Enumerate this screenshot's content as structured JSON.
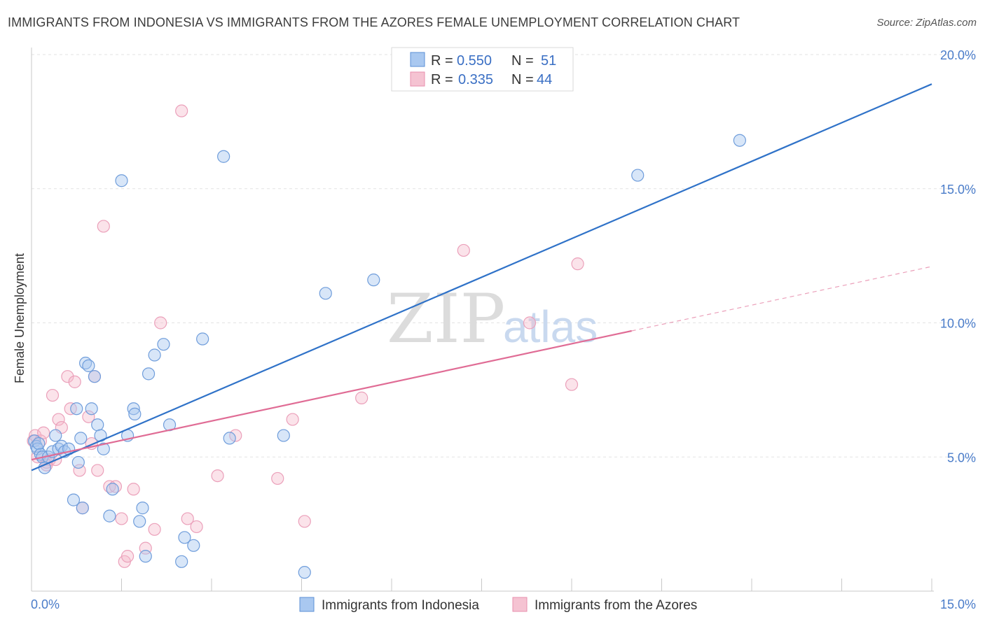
{
  "title": "IMMIGRANTS FROM INDONESIA VS IMMIGRANTS FROM THE AZORES FEMALE UNEMPLOYMENT CORRELATION CHART",
  "source": "Source: ZipAtlas.com",
  "watermark": {
    "zip": "ZIP",
    "atlas": "atlas"
  },
  "colors": {
    "blue": "#5b8fd6",
    "blue_fill": "#a9c8f0",
    "pink": "#e06c95",
    "pink_fill": "#f5b8cb",
    "axis_text": "#4a7cc9"
  },
  "legend": {
    "series": [
      {
        "r_label": "R =",
        "r_value": "0.550",
        "n_label": "N =",
        "n_value": "51"
      },
      {
        "r_label": "R =",
        "r_value": "0.335",
        "n_label": "N =",
        "n_value": "44"
      }
    ]
  },
  "bottom_legend": [
    "Immigrants from Indonesia",
    "Immigrants from the Azores"
  ],
  "chart_data": {
    "type": "scatter",
    "title": "IMMIGRANTS FROM INDONESIA VS IMMIGRANTS FROM THE AZORES FEMALE UNEMPLOYMENT CORRELATION CHART",
    "xlabel": "",
    "ylabel": "Female Unemployment",
    "xlim": [
      0,
      15
    ],
    "ylim": [
      0,
      20
    ],
    "x_tick_labels": [
      "0.0%",
      "15.0%"
    ],
    "y_ticks": [
      5,
      10,
      15,
      20
    ],
    "y_tick_labels": [
      "5.0%",
      "10.0%",
      "15.0%",
      "20.0%"
    ],
    "series": [
      {
        "name": "Immigrants from Indonesia",
        "color": "#5b8fd6",
        "r": 0.55,
        "n": 51,
        "trend": {
          "x": [
            0,
            15
          ],
          "y": [
            4.5,
            18.9
          ]
        },
        "points": [
          [
            0.05,
            5.6
          ],
          [
            0.08,
            5.4
          ],
          [
            0.1,
            5.3
          ],
          [
            0.12,
            5.5
          ],
          [
            0.15,
            5.1
          ],
          [
            0.18,
            5.0
          ],
          [
            0.22,
            4.6
          ],
          [
            0.28,
            5.0
          ],
          [
            0.35,
            5.2
          ],
          [
            0.4,
            5.8
          ],
          [
            0.45,
            5.3
          ],
          [
            0.5,
            5.4
          ],
          [
            0.55,
            5.2
          ],
          [
            0.62,
            5.3
          ],
          [
            0.7,
            3.4
          ],
          [
            0.75,
            6.8
          ],
          [
            0.78,
            4.8
          ],
          [
            0.82,
            5.7
          ],
          [
            0.85,
            3.1
          ],
          [
            0.9,
            8.5
          ],
          [
            0.95,
            8.4
          ],
          [
            1.0,
            6.8
          ],
          [
            1.05,
            8.0
          ],
          [
            1.1,
            6.2
          ],
          [
            1.15,
            5.8
          ],
          [
            1.2,
            5.3
          ],
          [
            1.3,
            2.8
          ],
          [
            1.35,
            3.8
          ],
          [
            1.5,
            15.3
          ],
          [
            1.6,
            5.8
          ],
          [
            1.7,
            6.8
          ],
          [
            1.72,
            6.6
          ],
          [
            1.8,
            2.6
          ],
          [
            1.85,
            3.1
          ],
          [
            1.9,
            1.3
          ],
          [
            1.95,
            8.1
          ],
          [
            2.05,
            8.8
          ],
          [
            2.2,
            9.2
          ],
          [
            2.3,
            6.2
          ],
          [
            2.5,
            1.1
          ],
          [
            2.55,
            2.0
          ],
          [
            2.7,
            1.7
          ],
          [
            2.85,
            9.4
          ],
          [
            3.2,
            16.2
          ],
          [
            3.3,
            5.7
          ],
          [
            4.2,
            5.8
          ],
          [
            4.55,
            0.7
          ],
          [
            4.9,
            11.1
          ],
          [
            5.7,
            11.6
          ],
          [
            10.1,
            15.5
          ],
          [
            11.8,
            16.8
          ]
        ]
      },
      {
        "name": "Immigrants from the Azores",
        "color": "#e06c95",
        "r": 0.335,
        "n": 44,
        "trend": {
          "x": [
            0,
            10
          ],
          "y": [
            4.9,
            9.7
          ]
        },
        "trend_dashed": {
          "x": [
            10,
            15
          ],
          "y": [
            9.7,
            12.1
          ]
        },
        "points": [
          [
            0.03,
            5.6
          ],
          [
            0.06,
            5.8
          ],
          [
            0.1,
            5.0
          ],
          [
            0.15,
            5.6
          ],
          [
            0.2,
            5.9
          ],
          [
            0.25,
            4.8
          ],
          [
            0.3,
            4.9
          ],
          [
            0.35,
            7.3
          ],
          [
            0.4,
            4.9
          ],
          [
            0.45,
            6.4
          ],
          [
            0.5,
            6.1
          ],
          [
            0.6,
            8.0
          ],
          [
            0.65,
            6.8
          ],
          [
            0.72,
            7.8
          ],
          [
            0.8,
            4.5
          ],
          [
            0.85,
            3.1
          ],
          [
            0.95,
            6.5
          ],
          [
            1.0,
            5.5
          ],
          [
            1.05,
            8.0
          ],
          [
            1.1,
            4.5
          ],
          [
            1.2,
            13.6
          ],
          [
            1.3,
            3.9
          ],
          [
            1.4,
            3.9
          ],
          [
            1.5,
            2.7
          ],
          [
            1.55,
            1.1
          ],
          [
            1.6,
            1.3
          ],
          [
            1.7,
            3.8
          ],
          [
            1.9,
            1.6
          ],
          [
            2.05,
            2.3
          ],
          [
            2.15,
            10.0
          ],
          [
            2.5,
            17.9
          ],
          [
            2.6,
            2.7
          ],
          [
            2.75,
            2.4
          ],
          [
            3.1,
            4.3
          ],
          [
            3.4,
            5.8
          ],
          [
            4.1,
            4.2
          ],
          [
            4.35,
            6.4
          ],
          [
            4.55,
            2.6
          ],
          [
            5.5,
            7.2
          ],
          [
            7.2,
            12.7
          ],
          [
            8.3,
            10.0
          ],
          [
            9.0,
            7.7
          ],
          [
            9.1,
            12.2
          ],
          [
            0.25,
            4.7
          ]
        ]
      }
    ]
  }
}
